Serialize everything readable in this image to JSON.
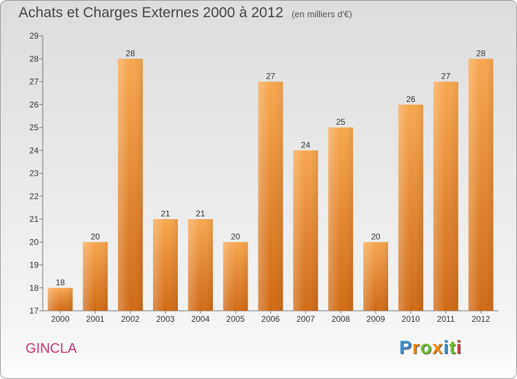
{
  "title": "Achats et Charges Externes 2000 à 2012",
  "unit": "(en milliers d'€)",
  "commune": "GINCLA",
  "logo": {
    "letters": [
      {
        "ch": "P",
        "color": "#3a8fd0"
      },
      {
        "ch": "r",
        "color": "#f08a10"
      },
      {
        "ch": "o",
        "color": "#6cbf2c"
      },
      {
        "ch": "x",
        "color": "#f08a10"
      },
      {
        "ch": "i",
        "color": "#3a8fd0"
      },
      {
        "ch": "t",
        "color": "#6cbf2c"
      },
      {
        "ch": "i",
        "color": "#d43a3a"
      }
    ]
  },
  "chart_data": {
    "type": "bar",
    "categories": [
      "2000",
      "2001",
      "2002",
      "2003",
      "2004",
      "2005",
      "2006",
      "2007",
      "2008",
      "2009",
      "2010",
      "2011",
      "2012"
    ],
    "values": [
      18,
      20,
      28,
      21,
      21,
      20,
      27,
      24,
      25,
      20,
      26,
      27,
      28
    ],
    "title": "Achats et Charges Externes 2000 à 2012",
    "ylim": [
      17,
      29
    ],
    "yticks": [
      17,
      18,
      19,
      20,
      21,
      22,
      23,
      24,
      25,
      26,
      27,
      28,
      29
    ],
    "grid": false,
    "bar_color": "#f08c30"
  }
}
